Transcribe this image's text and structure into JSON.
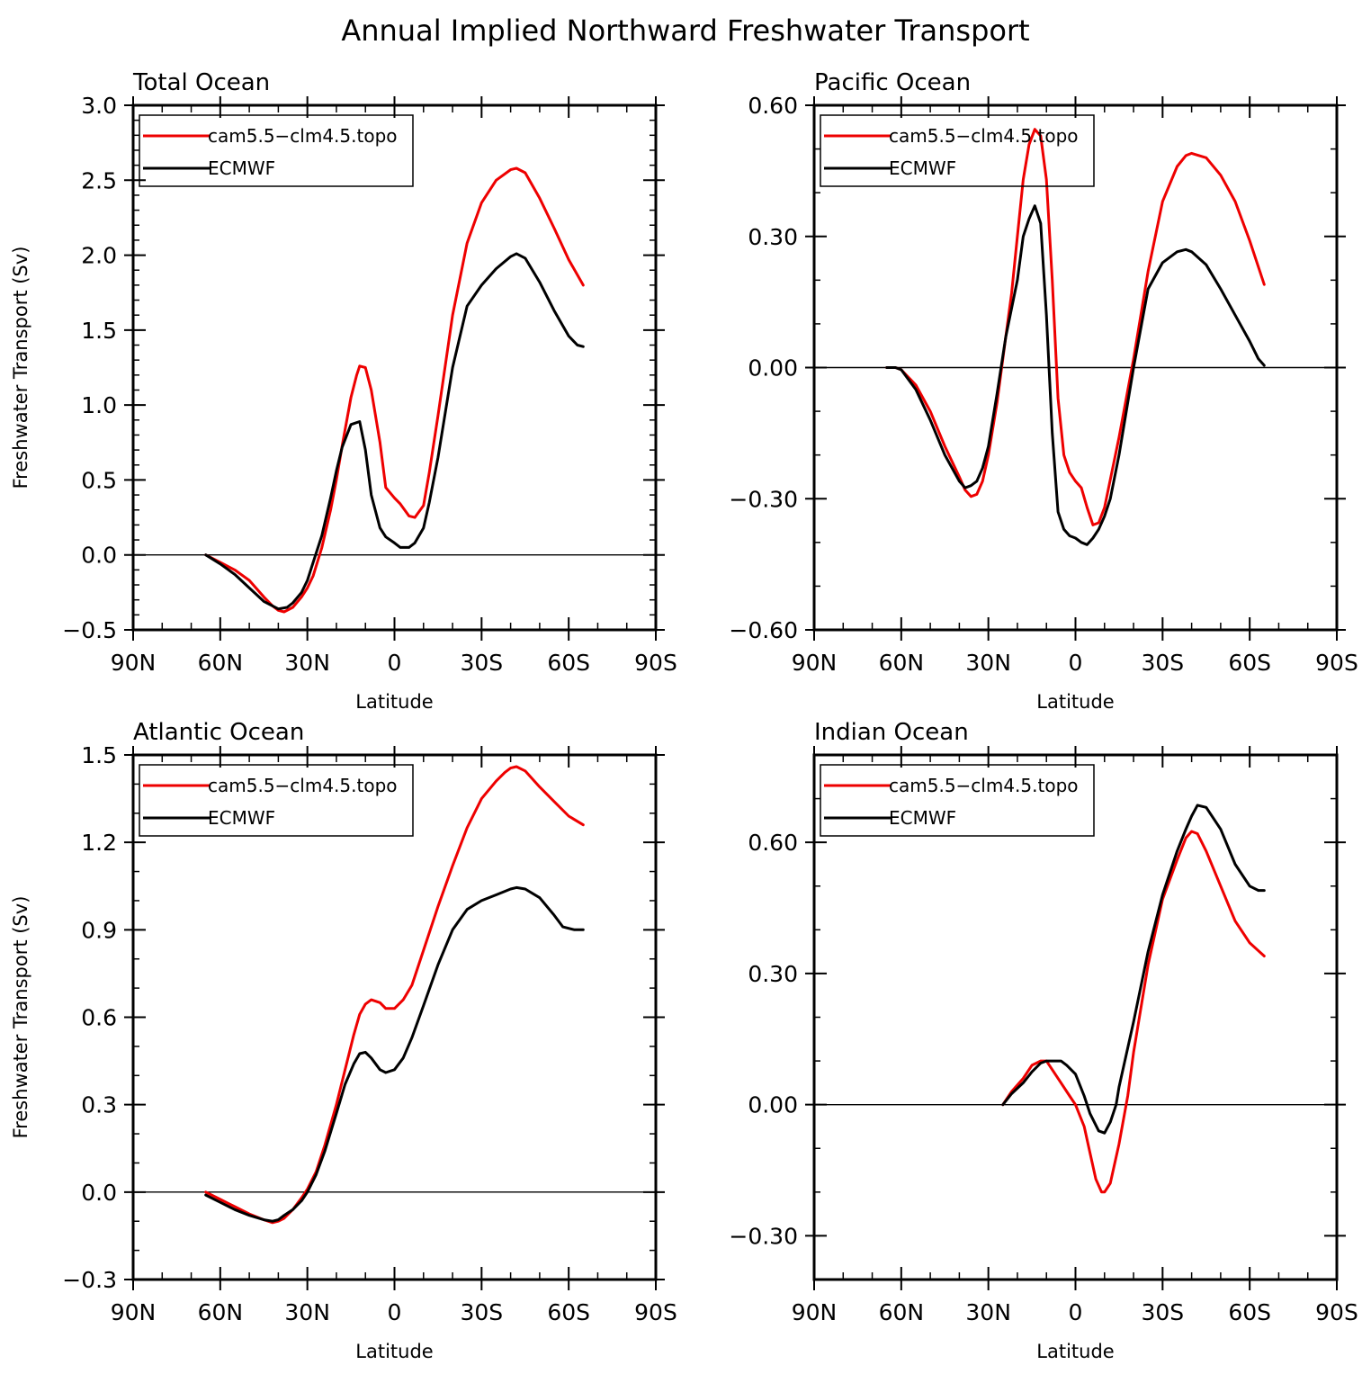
{
  "title": "Annual Implied Northward Freshwater Transport",
  "colors": {
    "model": "#ee0000",
    "obs": "#000000"
  },
  "chart_data": [
    {
      "type": "line",
      "title": "Total Ocean",
      "xlabel": "Latitude",
      "ylabel": "Freshwater Transport (Sv)",
      "xlim": [
        90,
        -90
      ],
      "xticks": [
        90,
        60,
        30,
        0,
        -30,
        -60,
        -90
      ],
      "xtick_labels": [
        "90N",
        "60N",
        "30N",
        "0",
        "30S",
        "60S",
        "90S"
      ],
      "ylim": [
        -0.5,
        3.0
      ],
      "yticks": [
        -0.5,
        0.0,
        0.5,
        1.0,
        1.5,
        2.0,
        2.5,
        3.0
      ],
      "ytick_labels": [
        "−0.5",
        "0.0",
        "0.5",
        "1.0",
        "1.5",
        "2.0",
        "2.5",
        "3.0"
      ],
      "yminor": 0.1,
      "zero_line": true,
      "legend": {
        "position": "top-left"
      },
      "series": [
        {
          "name": "cam5.5−clm4.5.topo",
          "color": "#ee0000",
          "x": [
            65,
            60,
            55,
            50,
            45,
            42,
            40,
            38,
            35,
            32,
            30,
            28,
            25,
            22,
            20,
            18,
            15,
            13,
            12,
            10,
            8,
            5,
            3,
            0,
            -2,
            -5,
            -7,
            -10,
            -12,
            -15,
            -20,
            -25,
            -30,
            -35,
            -40,
            -42,
            -45,
            -50,
            -55,
            -60,
            -65
          ],
          "y": [
            0.0,
            -0.05,
            -0.1,
            -0.17,
            -0.28,
            -0.34,
            -0.37,
            -0.38,
            -0.35,
            -0.28,
            -0.22,
            -0.14,
            0.05,
            0.3,
            0.5,
            0.73,
            1.05,
            1.2,
            1.26,
            1.25,
            1.1,
            0.75,
            0.45,
            0.38,
            0.34,
            0.26,
            0.25,
            0.33,
            0.55,
            0.93,
            1.6,
            2.08,
            2.35,
            2.5,
            2.57,
            2.58,
            2.55,
            2.38,
            2.18,
            1.97,
            1.8
          ]
        },
        {
          "name": "ECMWF",
          "color": "#000000",
          "x": [
            65,
            60,
            55,
            50,
            45,
            40,
            37,
            35,
            32,
            30,
            28,
            25,
            22,
            20,
            18,
            15,
            12,
            10,
            8,
            5,
            3,
            0,
            -2,
            -5,
            -7,
            -10,
            -12,
            -15,
            -20,
            -25,
            -30,
            -35,
            -40,
            -42,
            -45,
            -50,
            -55,
            -60,
            -63,
            -65
          ],
          "y": [
            0.0,
            -0.06,
            -0.13,
            -0.22,
            -0.31,
            -0.36,
            -0.35,
            -0.32,
            -0.25,
            -0.17,
            -0.05,
            0.13,
            0.38,
            0.56,
            0.72,
            0.87,
            0.89,
            0.7,
            0.4,
            0.18,
            0.12,
            0.08,
            0.05,
            0.05,
            0.08,
            0.18,
            0.35,
            0.65,
            1.25,
            1.66,
            1.8,
            1.91,
            1.99,
            2.01,
            1.98,
            1.82,
            1.63,
            1.46,
            1.4,
            1.39
          ]
        }
      ]
    },
    {
      "type": "line",
      "title": "Pacific Ocean",
      "xlabel": "Latitude",
      "ylabel": "",
      "xlim": [
        90,
        -90
      ],
      "xticks": [
        90,
        60,
        30,
        0,
        -30,
        -60,
        -90
      ],
      "xtick_labels": [
        "90N",
        "60N",
        "30N",
        "0",
        "30S",
        "60S",
        "90S"
      ],
      "ylim": [
        -0.6,
        0.6
      ],
      "yticks": [
        -0.6,
        -0.3,
        0.0,
        0.3,
        0.6
      ],
      "ytick_labels": [
        "−0.60",
        "−0.30",
        "0.00",
        "0.30",
        "0.60"
      ],
      "yminor": 0.1,
      "zero_line": true,
      "legend": {
        "position": "top-left"
      },
      "series": [
        {
          "name": "cam5.5−clm4.5.topo",
          "color": "#ee0000",
          "x": [
            65,
            62,
            60,
            55,
            50,
            45,
            40,
            38,
            36,
            34,
            32,
            30,
            27,
            24,
            22,
            20,
            18,
            16,
            14,
            12,
            10,
            8,
            6,
            4,
            2,
            0,
            -2,
            -4,
            -6,
            -8,
            -10,
            -15,
            -20,
            -25,
            -30,
            -35,
            -38,
            -40,
            -45,
            -50,
            -55,
            -60,
            -65
          ],
          "y": [
            0.0,
            0.0,
            -0.005,
            -0.04,
            -0.1,
            -0.18,
            -0.25,
            -0.28,
            -0.295,
            -0.29,
            -0.26,
            -0.2,
            -0.08,
            0.07,
            0.17,
            0.3,
            0.43,
            0.51,
            0.545,
            0.53,
            0.43,
            0.2,
            -0.07,
            -0.2,
            -0.24,
            -0.26,
            -0.275,
            -0.32,
            -0.36,
            -0.355,
            -0.32,
            -0.16,
            0.02,
            0.22,
            0.38,
            0.46,
            0.485,
            0.49,
            0.48,
            0.44,
            0.38,
            0.29,
            0.19
          ]
        },
        {
          "name": "ECMWF",
          "color": "#000000",
          "x": [
            65,
            62,
            60,
            55,
            50,
            45,
            40,
            38,
            36,
            34,
            32,
            30,
            27,
            24,
            20,
            18,
            16,
            14,
            12,
            10,
            8,
            6,
            4,
            2,
            0,
            -2,
            -4,
            -6,
            -8,
            -10,
            -12,
            -15,
            -20,
            -25,
            -30,
            -35,
            -38,
            -40,
            -45,
            -50,
            -55,
            -60,
            -63,
            -65
          ],
          "y": [
            0.0,
            0.0,
            -0.005,
            -0.05,
            -0.12,
            -0.2,
            -0.26,
            -0.275,
            -0.27,
            -0.26,
            -0.23,
            -0.18,
            -0.06,
            0.07,
            0.2,
            0.3,
            0.34,
            0.37,
            0.33,
            0.12,
            -0.15,
            -0.33,
            -0.37,
            -0.385,
            -0.39,
            -0.4,
            -0.405,
            -0.39,
            -0.37,
            -0.34,
            -0.3,
            -0.2,
            0.0,
            0.18,
            0.24,
            0.265,
            0.27,
            0.265,
            0.235,
            0.18,
            0.12,
            0.06,
            0.02,
            0.005
          ]
        }
      ]
    },
    {
      "type": "line",
      "title": "Atlantic Ocean",
      "xlabel": "Latitude",
      "ylabel": "Freshwater Transport (Sv)",
      "xlim": [
        90,
        -90
      ],
      "xticks": [
        90,
        60,
        30,
        0,
        -30,
        -60,
        -90
      ],
      "xtick_labels": [
        "90N",
        "60N",
        "30N",
        "0",
        "30S",
        "60S",
        "90S"
      ],
      "ylim": [
        -0.3,
        1.5
      ],
      "yticks": [
        -0.3,
        0.0,
        0.3,
        0.6,
        0.9,
        1.2,
        1.5
      ],
      "ytick_labels": [
        "−0.3",
        "0.0",
        "0.3",
        "0.6",
        "0.9",
        "1.2",
        "1.5"
      ],
      "yminor": 0.1,
      "zero_line": true,
      "legend": {
        "position": "top-left"
      },
      "series": [
        {
          "name": "cam5.5−clm4.5.topo",
          "color": "#ee0000",
          "x": [
            65,
            60,
            55,
            50,
            45,
            42,
            40,
            38,
            35,
            32,
            30,
            27,
            24,
            20,
            17,
            14,
            12,
            10,
            8,
            5,
            3,
            0,
            -3,
            -6,
            -10,
            -15,
            -20,
            -25,
            -30,
            -35,
            -38,
            -40,
            -42,
            -45,
            -50,
            -55,
            -60,
            -65
          ],
          "y": [
            0.0,
            -0.025,
            -0.05,
            -0.075,
            -0.095,
            -0.105,
            -0.1,
            -0.09,
            -0.06,
            -0.02,
            0.01,
            0.07,
            0.16,
            0.3,
            0.42,
            0.54,
            0.61,
            0.645,
            0.66,
            0.65,
            0.63,
            0.63,
            0.66,
            0.71,
            0.83,
            0.98,
            1.12,
            1.25,
            1.35,
            1.41,
            1.44,
            1.455,
            1.46,
            1.445,
            1.39,
            1.34,
            1.29,
            1.26
          ]
        },
        {
          "name": "ECMWF",
          "color": "#000000",
          "x": [
            65,
            60,
            55,
            50,
            45,
            42,
            40,
            38,
            35,
            32,
            30,
            27,
            24,
            20,
            17,
            14,
            12,
            10,
            8,
            5,
            3,
            0,
            -3,
            -6,
            -10,
            -15,
            -20,
            -25,
            -30,
            -35,
            -40,
            -42,
            -45,
            -50,
            -55,
            -58,
            -62,
            -65
          ],
          "y": [
            -0.01,
            -0.035,
            -0.06,
            -0.08,
            -0.095,
            -0.1,
            -0.095,
            -0.08,
            -0.06,
            -0.03,
            0.0,
            0.06,
            0.14,
            0.27,
            0.37,
            0.44,
            0.475,
            0.48,
            0.46,
            0.42,
            0.41,
            0.42,
            0.46,
            0.53,
            0.64,
            0.78,
            0.9,
            0.97,
            1.0,
            1.02,
            1.04,
            1.045,
            1.04,
            1.01,
            0.95,
            0.91,
            0.9,
            0.9
          ]
        }
      ]
    },
    {
      "type": "line",
      "title": "Indian Ocean",
      "xlabel": "Latitude",
      "ylabel": "",
      "xlim": [
        90,
        -90
      ],
      "xticks": [
        90,
        60,
        30,
        0,
        -30,
        -60,
        -90
      ],
      "xtick_labels": [
        "90N",
        "60N",
        "30N",
        "0",
        "30S",
        "60S",
        "90S"
      ],
      "ylim": [
        -0.4,
        0.8
      ],
      "yticks": [
        -0.3,
        0.0,
        0.3,
        0.6
      ],
      "ytick_labels": [
        "−0.30",
        "0.00",
        "0.30",
        "0.60"
      ],
      "yminor": 0.1,
      "zero_line": true,
      "legend": {
        "position": "top-left"
      },
      "series": [
        {
          "name": "cam5.5−clm4.5.topo",
          "color": "#ee0000",
          "x": [
            25,
            22,
            18,
            15,
            12,
            10,
            8,
            5,
            2,
            0,
            -3,
            -5,
            -7,
            -9,
            -10,
            -12,
            -15,
            -18,
            -20,
            -25,
            -30,
            -35,
            -38,
            -40,
            -42,
            -45,
            -50,
            -55,
            -60,
            -65
          ],
          "y": [
            0.0,
            0.03,
            0.06,
            0.09,
            0.1,
            0.1,
            0.08,
            0.05,
            0.02,
            0.0,
            -0.05,
            -0.11,
            -0.17,
            -0.2,
            -0.2,
            -0.18,
            -0.09,
            0.02,
            0.12,
            0.32,
            0.47,
            0.56,
            0.61,
            0.625,
            0.62,
            0.58,
            0.5,
            0.42,
            0.37,
            0.34
          ]
        },
        {
          "name": "ECMWF",
          "color": "#000000",
          "x": [
            25,
            22,
            18,
            15,
            12,
            10,
            7,
            5,
            3,
            0,
            -3,
            -5,
            -8,
            -10,
            -12,
            -14,
            -15,
            -20,
            -25,
            -30,
            -35,
            -38,
            -40,
            -42,
            -45,
            -50,
            -55,
            -60,
            -63,
            -65
          ],
          "y": [
            0.0,
            0.025,
            0.05,
            0.075,
            0.095,
            0.1,
            0.1,
            0.1,
            0.09,
            0.07,
            0.02,
            -0.02,
            -0.06,
            -0.065,
            -0.04,
            0.0,
            0.04,
            0.19,
            0.35,
            0.48,
            0.58,
            0.63,
            0.66,
            0.685,
            0.68,
            0.63,
            0.55,
            0.5,
            0.49,
            0.49
          ]
        }
      ]
    }
  ]
}
